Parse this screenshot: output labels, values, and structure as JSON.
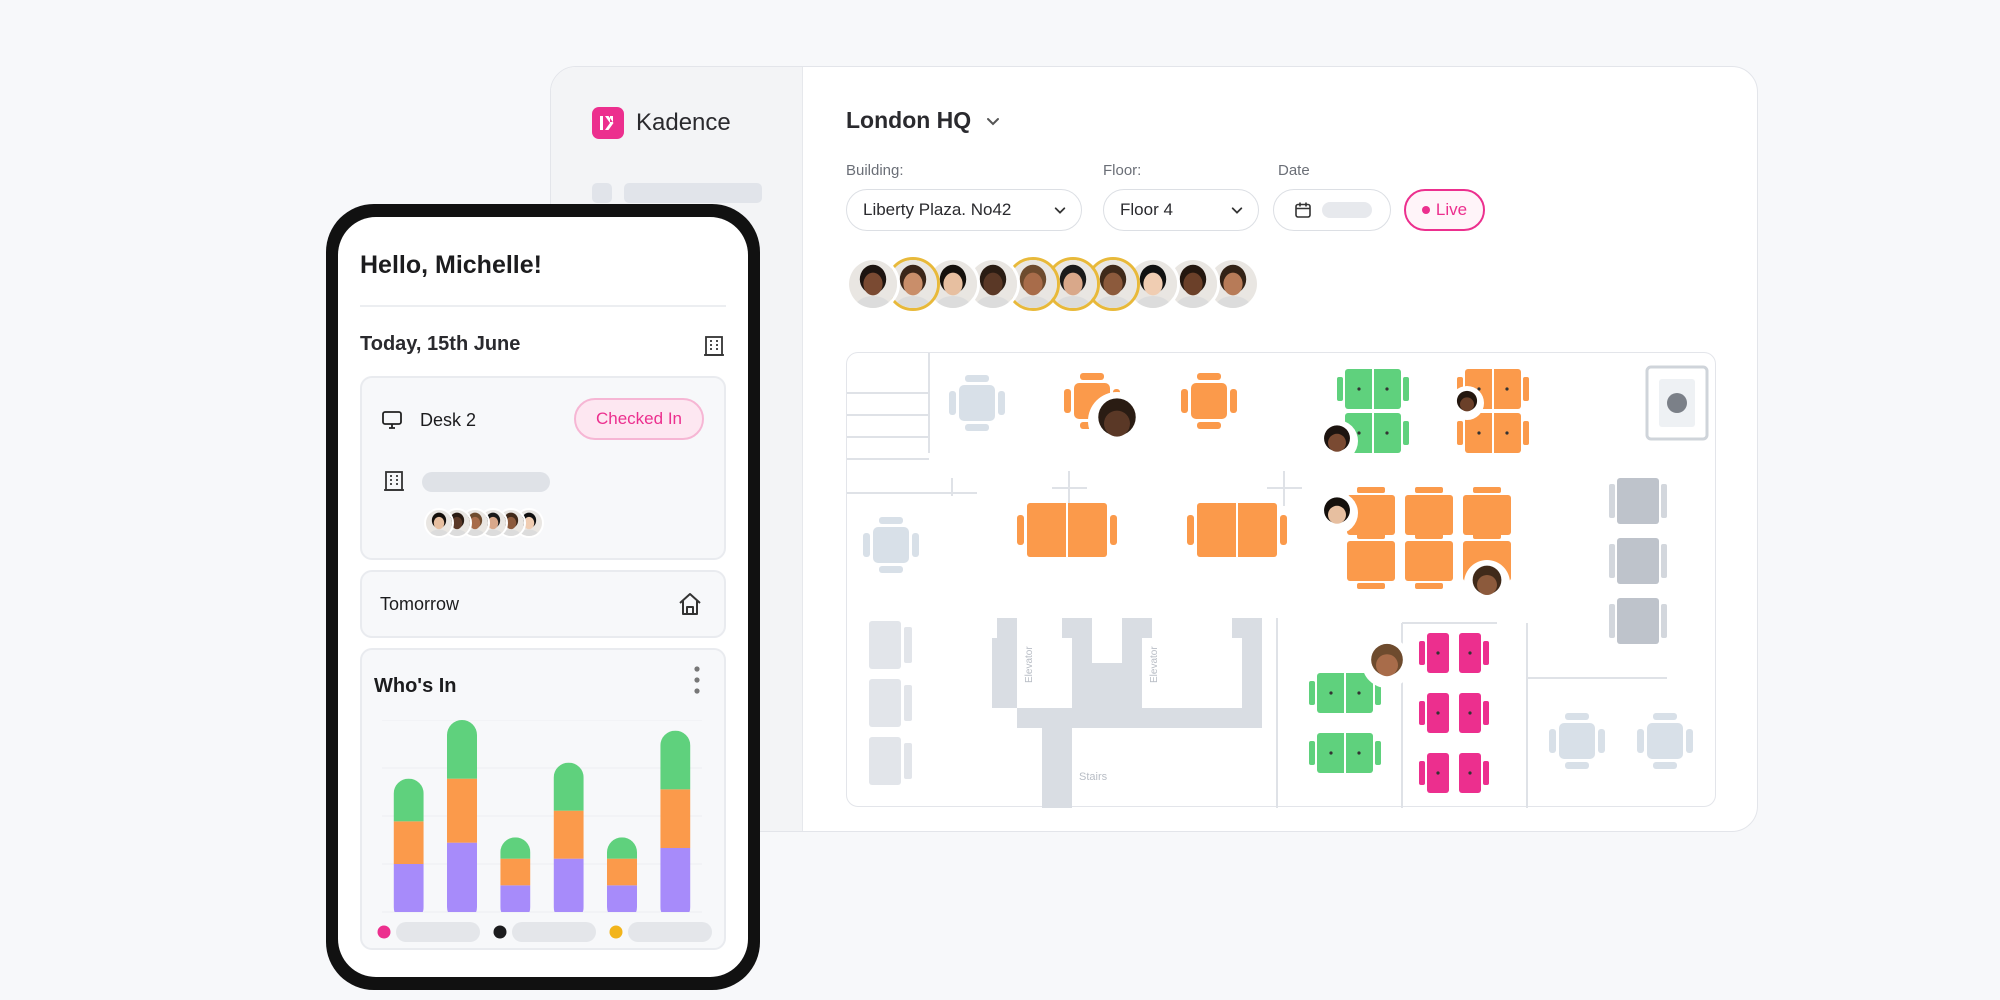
{
  "app": {
    "brand_name": "Kadence",
    "brand_color": "#ec2f8e"
  },
  "desktop": {
    "location_title": "London HQ",
    "filters": {
      "building_label": "Building:",
      "building_value": "Liberty Plaza. No42",
      "floor_label": "Floor:",
      "floor_value": "Floor 4",
      "date_label": "Date"
    },
    "live_label": "Live",
    "floorplan": {
      "elevator_label": "Elevator",
      "stairs_label": "Stairs"
    }
  },
  "mobile": {
    "greeting": "Hello, Michelle!",
    "today_label": "Today, 15th June",
    "desk_label": "Desk 2",
    "status_badge": "Checked In",
    "tomorrow_label": "Tomorrow",
    "whos_in_title": "Who's In"
  },
  "chart_data": {
    "type": "bar",
    "stacked": true,
    "categories": [
      "",
      "",
      "",
      "",
      "",
      ""
    ],
    "series": [
      {
        "values": [
          4.5,
          6.5,
          2.5,
          5,
          2.5,
          6
        ],
        "color": "#a78bfa"
      },
      {
        "values": [
          4,
          6,
          2.5,
          4.5,
          2.5,
          5.5
        ],
        "color": "#fb9a4b"
      },
      {
        "values": [
          4,
          5.5,
          2,
          4.5,
          2,
          5.5
        ],
        "color": "#5fd17d"
      }
    ],
    "ylim": [
      0,
      18
    ],
    "grid": true,
    "legend_colors": [
      "#ec2f8e",
      "#1c1c1e",
      "#f2b41b"
    ]
  }
}
